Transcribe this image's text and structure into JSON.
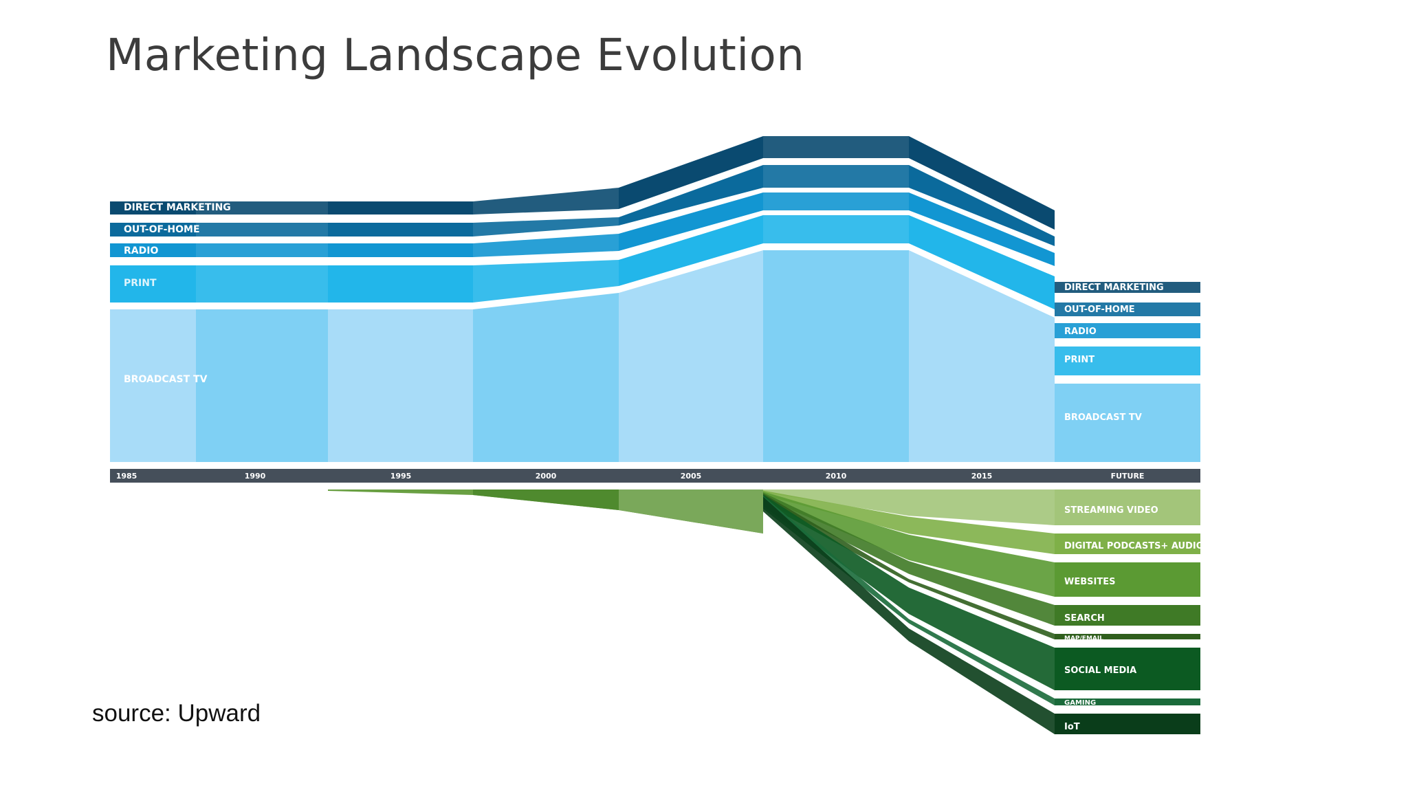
{
  "title": "Marketing Landscape Evolution",
  "source": "source: Upward",
  "chart_data": {
    "type": "area",
    "title": "",
    "x": [
      "1985",
      "1990",
      "1995",
      "2000",
      "2005",
      "2010",
      "2015",
      "FUTURE"
    ],
    "traditional_series": [
      {
        "name": "DIRECT MARKETING",
        "color": "#0a4a70"
      },
      {
        "name": "OUT-OF-HOME",
        "color": "#0b6a9c"
      },
      {
        "name": "RADIO",
        "color": "#1296d2"
      },
      {
        "name": "PRINT",
        "color": "#22b6ea"
      },
      {
        "name": "BROADCAST TV",
        "color": "#8ad4f5"
      }
    ],
    "left_labels": [
      "DIRECT MARKETING",
      "OUT-OF-HOME",
      "RADIO",
      "PRINT",
      "BROADCAST TV"
    ],
    "right_labels": [
      "DIRECT MARKETING",
      "OUT-OF-HOME",
      "RADIO",
      "PRINT",
      "BROADCAST TV"
    ],
    "digital_series": [
      {
        "name": "STREAMING VIDEO",
        "color": "#a3c57a"
      },
      {
        "name": "DIGITAL PODCASTS+ AUDIO",
        "color": "#7fb048"
      },
      {
        "name": "WEBSITES",
        "color": "#5b9a33"
      },
      {
        "name": "SEARCH",
        "color": "#3f7a26"
      },
      {
        "name": "MAP/EMAIL",
        "color": "#2f5e1d"
      },
      {
        "name": "SOCIAL MEDIA",
        "color": "#0c5a22"
      },
      {
        "name": "GAMING",
        "color": "#1a6a3a"
      },
      {
        "name": "IoT",
        "color": "#0a3d1a"
      }
    ]
  }
}
